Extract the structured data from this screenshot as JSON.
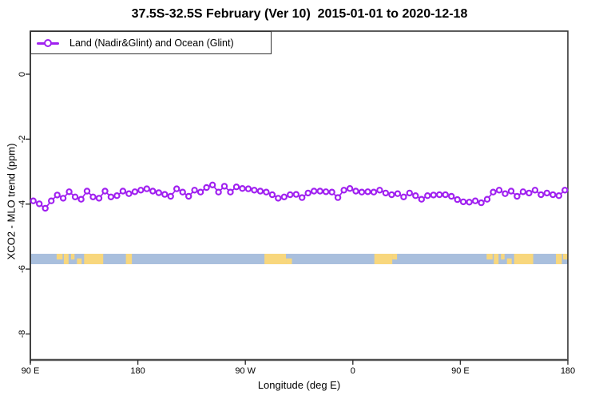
{
  "title": "37.5S-32.5S February (Ver 10)  2015-01-01 to 2020-12-18",
  "legend": {
    "label": "Land (Nadir&Glint) and Ocean (Glint)",
    "marker": "open-circle-on-line",
    "marker_color": "#A020F0"
  },
  "axes": {
    "x_label": "Longitude (deg E)",
    "y_label": "XCO2 - MLO trend (ppm)",
    "x_ticks": [
      {
        "lon": 90,
        "label": "90 E"
      },
      {
        "lon": 180,
        "label": "180"
      },
      {
        "lon": 270,
        "label": "90 W"
      },
      {
        "lon": 360,
        "label": "0"
      },
      {
        "lon": 450,
        "label": "90 E"
      },
      {
        "lon": 540,
        "label": "180"
      }
    ],
    "y_ticks": [
      {
        "value": 0,
        "label": "0"
      },
      {
        "value": -2,
        "label": "-2"
      },
      {
        "value": -4,
        "label": "-4"
      },
      {
        "value": -6,
        "label": "-6"
      },
      {
        "value": -8,
        "label": "-8"
      }
    ]
  },
  "colors": {
    "series_purple": "#A020F0",
    "ocean_strip": "#A9BFDD",
    "land_patch": "#F8D77D",
    "frame": "#333333"
  },
  "map_strip": {
    "description": "latitude-band world map strip 37.5S-32.5S",
    "y_top_value": -5.53,
    "y_bottom_value": -5.85,
    "land_segments": [
      {
        "name": "australia-sw",
        "start": 112,
        "end": 117,
        "band": "top"
      },
      {
        "name": "australia-s1",
        "start": 118,
        "end": 122,
        "band": "full"
      },
      {
        "name": "australia-s2",
        "start": 124,
        "end": 127,
        "band": "top"
      },
      {
        "name": "australia-s3",
        "start": 129,
        "end": 133,
        "band": "bottom"
      },
      {
        "name": "australia-se",
        "start": 135,
        "end": 151,
        "band": "full"
      },
      {
        "name": "new-zealand",
        "start": 170,
        "end": 175,
        "band": "full"
      },
      {
        "name": "south-america",
        "start": 286,
        "end": 304,
        "band": "full"
      },
      {
        "name": "south-america-coast",
        "start": 304,
        "end": 309,
        "band": "bottom"
      },
      {
        "name": "south-africa",
        "start": 378,
        "end": 393,
        "band": "full"
      },
      {
        "name": "south-africa-east",
        "start": 393,
        "end": 397,
        "band": "top"
      },
      {
        "name": "australia-sw-wrap",
        "start": 472,
        "end": 477,
        "band": "top"
      },
      {
        "name": "australia-s1-wrap",
        "start": 478,
        "end": 482,
        "band": "full"
      },
      {
        "name": "australia-s2-wrap",
        "start": 484,
        "end": 487,
        "band": "top"
      },
      {
        "name": "australia-s3-wrap",
        "start": 489,
        "end": 493,
        "band": "bottom"
      },
      {
        "name": "australia-se-wrap",
        "start": 495,
        "end": 511,
        "band": "full"
      },
      {
        "name": "new-zealand-wrap",
        "start": 530,
        "end": 535,
        "band": "full"
      },
      {
        "name": "new-zealand-wrap2",
        "start": 536,
        "end": 540,
        "band": "top"
      }
    ]
  },
  "chart_data": {
    "type": "line",
    "title": "37.5S-32.5S February (Ver 10)  2015-01-01 to 2020-12-18",
    "xlabel": "Longitude (deg E)",
    "ylabel": "XCO2 - MLO trend (ppm)",
    "series_name": "Land (Nadir&Glint) and Ocean (Glint)",
    "marker": "open-circle",
    "color": "#A020F0",
    "xlim": [
      90,
      540
    ],
    "ylim": [
      -8.8,
      1.33
    ],
    "x_note": "longitude axis wraps: 90E -> 180 -> 90W(270) -> 0(360) -> 90E(450) -> 180(540)",
    "lon_start": 92.5,
    "lon_step": 5,
    "values": [
      -3.9,
      -3.99,
      -4.13,
      -3.9,
      -3.72,
      -3.82,
      -3.62,
      -3.78,
      -3.85,
      -3.6,
      -3.78,
      -3.82,
      -3.6,
      -3.78,
      -3.74,
      -3.6,
      -3.68,
      -3.62,
      -3.57,
      -3.53,
      -3.6,
      -3.65,
      -3.7,
      -3.76,
      -3.53,
      -3.63,
      -3.76,
      -3.57,
      -3.63,
      -3.49,
      -3.41,
      -3.63,
      -3.45,
      -3.63,
      -3.47,
      -3.52,
      -3.53,
      -3.57,
      -3.6,
      -3.63,
      -3.71,
      -3.82,
      -3.78,
      -3.71,
      -3.7,
      -3.8,
      -3.66,
      -3.6,
      -3.6,
      -3.62,
      -3.63,
      -3.8,
      -3.57,
      -3.52,
      -3.6,
      -3.63,
      -3.62,
      -3.63,
      -3.57,
      -3.66,
      -3.71,
      -3.68,
      -3.78,
      -3.66,
      -3.74,
      -3.85,
      -3.74,
      -3.72,
      -3.71,
      -3.71,
      -3.76,
      -3.86,
      -3.93,
      -3.94,
      -3.9,
      -3.96,
      -3.85,
      -3.63,
      -3.57,
      -3.68,
      -3.6,
      -3.76,
      -3.62,
      -3.66,
      -3.57,
      -3.71,
      -3.66,
      -3.71,
      -3.74,
      -3.57
    ]
  }
}
